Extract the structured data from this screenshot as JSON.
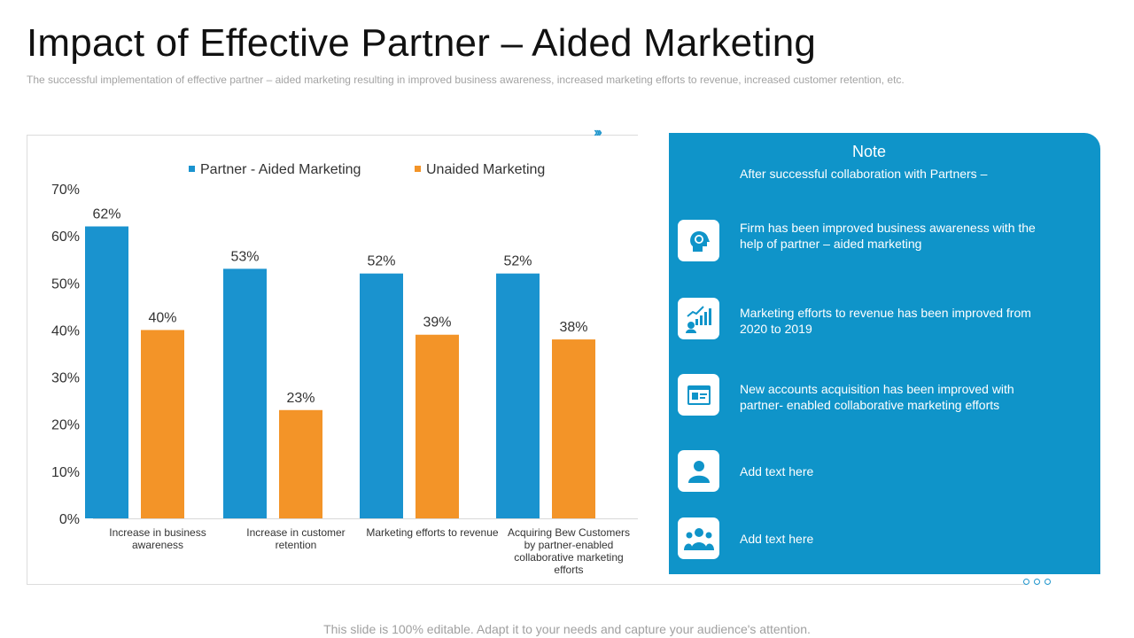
{
  "title": "Impact of Effective Partner – Aided Marketing",
  "subtitle": "The successful implementation of effective  partner – aided marketing resulting in improved  business awareness,  increased marketing efforts to revenue,  increased customer retention, etc.",
  "footer": "This slide is 100% editable. Adapt it to your needs and capture your audience's attention.",
  "colors": {
    "partner": "#1a93cf",
    "unaided": "#f39428",
    "panel": "#0f94c9"
  },
  "chart_data": {
    "type": "bar",
    "categories": [
      [
        "Increase in business",
        "awareness"
      ],
      [
        "Increase in customer",
        "retention"
      ],
      [
        "Marketing efforts to revenue"
      ],
      [
        "Acquiring Bew Customers",
        "by partner-enabled",
        "collaborative marketing",
        "efforts"
      ]
    ],
    "series": [
      {
        "name": "Partner - Aided Marketing",
        "values": [
          62,
          53,
          52,
          52
        ],
        "labels": [
          "62%",
          "53%",
          "52%",
          "52%"
        ]
      },
      {
        "name": "Unaided Marketing",
        "values": [
          40,
          23,
          39,
          38
        ],
        "labels": [
          "40%",
          "23%",
          "39%",
          "38%"
        ]
      }
    ],
    "ylim": [
      0,
      70
    ],
    "yticks": [
      "0%",
      "10%",
      "20%",
      "30%",
      "40%",
      "50%",
      "60%",
      "70%"
    ],
    "legend_position": "top",
    "grid": false
  },
  "note": {
    "title": "Note",
    "intro": "After successful collaboration with Partners –",
    "items": [
      {
        "icon": "head-globe-icon",
        "text": "Firm has been improved business awareness with the help of partner – aided marketing"
      },
      {
        "icon": "growth-chart-user-icon",
        "text": "Marketing efforts to revenue has been improved from 2020 to 2019"
      },
      {
        "icon": "account-card-icon",
        "text": "New accounts acquisition has been improved with partner- enabled collaborative marketing efforts"
      },
      {
        "icon": "user-icon",
        "text": "Add text here"
      },
      {
        "icon": "team-icon",
        "text": "Add text here"
      }
    ]
  }
}
